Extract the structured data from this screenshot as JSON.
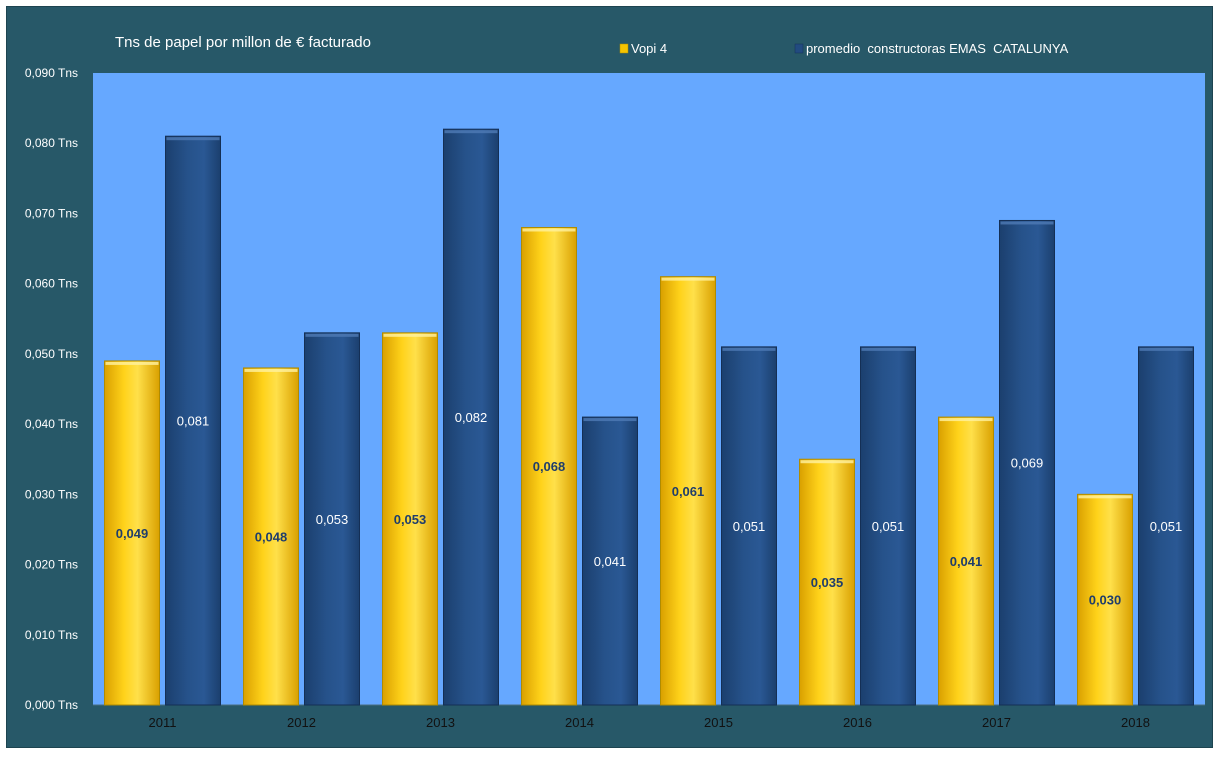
{
  "chart_data": {
    "type": "bar",
    "title": "Tns de papel por millon de € facturado",
    "categories": [
      "2011",
      "2012",
      "2013",
      "2014",
      "2015",
      "2016",
      "2017",
      "2018"
    ],
    "series": [
      {
        "name": "Vopi 4",
        "color": "#f5c400",
        "values": [
          0.049,
          0.048,
          0.053,
          0.068,
          0.061,
          0.035,
          0.041,
          0.03
        ],
        "labels": [
          "0,049",
          "0,048",
          "0,053",
          "0,068",
          "0,061",
          "0,035",
          "0,041",
          "0,030"
        ]
      },
      {
        "name": "promedio  constructoras EMAS  CATALUNYA",
        "color": "#224b80",
        "values": [
          0.081,
          0.053,
          0.082,
          0.041,
          0.051,
          0.051,
          0.069,
          0.051
        ],
        "labels": [
          "0,081",
          "0,053",
          "0,082",
          "0,041",
          "0,051",
          "0,051",
          "0,069",
          "0,051"
        ]
      }
    ],
    "y_ticks": [
      "0,000 Tns",
      "0,010 Tns",
      "0,020 Tns",
      "0,030 Tns",
      "0,040 Tns",
      "0,050 Tns",
      "0,060 Tns",
      "0,070 Tns",
      "0,080 Tns",
      "0,090 Tns"
    ],
    "ylim": [
      0,
      0.09
    ],
    "y_step": 0.01,
    "grid": false,
    "legend_position": "top",
    "plot_background": "#66a8ff",
    "frame_background": "#275868"
  }
}
